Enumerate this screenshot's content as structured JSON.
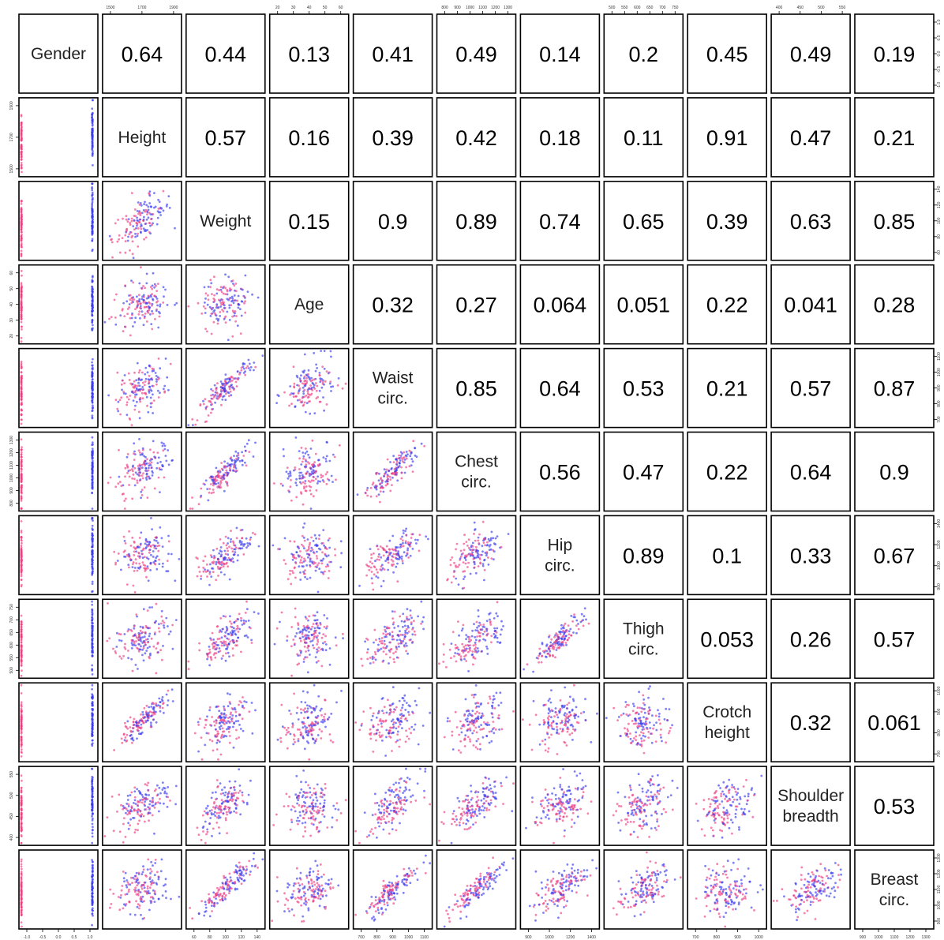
{
  "chart_data": {
    "type": "scatter",
    "subtype": "scatterplot-matrix",
    "variables": [
      "Gender",
      "Height",
      "Weight",
      "Age",
      "Waist\ncirc.",
      "Chest\ncirc.",
      "Hip\ncirc.",
      "Thigh\ncirc.",
      "Crotch\nheight",
      "Shoulder\nbreadth",
      "Breast\ncirc."
    ],
    "upper_panel": "correlation",
    "lower_panel": "scatter",
    "correlations": [
      [
        "",
        "0.64",
        "0.44",
        "0.13",
        "0.41",
        "0.49",
        "0.14",
        "0.2",
        "0.45",
        "0.49",
        "0.19"
      ],
      [
        "",
        "",
        "0.57",
        "0.16",
        "0.39",
        "0.42",
        "0.18",
        "0.11",
        "0.91",
        "0.47",
        "0.21"
      ],
      [
        "",
        "",
        "",
        "0.15",
        "0.9",
        "0.89",
        "0.74",
        "0.65",
        "0.39",
        "0.63",
        "0.85"
      ],
      [
        "",
        "",
        "",
        "",
        "0.32",
        "0.27",
        "0.064",
        "0.051",
        "0.22",
        "0.041",
        "0.28"
      ],
      [
        "",
        "",
        "",
        "",
        "",
        "0.85",
        "0.64",
        "0.53",
        "0.21",
        "0.57",
        "0.87"
      ],
      [
        "",
        "",
        "",
        "",
        "",
        "",
        "0.56",
        "0.47",
        "0.22",
        "0.64",
        "0.9"
      ],
      [
        "",
        "",
        "",
        "",
        "",
        "",
        "",
        "0.89",
        "0.1",
        "0.33",
        "0.67"
      ],
      [
        "",
        "",
        "",
        "",
        "",
        "",
        "",
        "",
        "0.053",
        "0.26",
        "0.57"
      ],
      [
        "",
        "",
        "",
        "",
        "",
        "",
        "",
        "",
        "",
        "0.32",
        "0.061"
      ],
      [
        "",
        "",
        "",
        "",
        "",
        "",
        "",
        "",
        "",
        "",
        "0.53"
      ],
      [
        "",
        "",
        "",
        "",
        "",
        "",
        "",
        "",
        "",
        "",
        ""
      ]
    ],
    "groups": [
      {
        "color": "#ee3d82"
      },
      {
        "color": "#3a3cf0"
      }
    ],
    "axis_ticks": {
      "Gender": [
        "-1.0",
        "-0.5",
        "0.0",
        "0.5",
        "1.0"
      ],
      "Height": [
        "1500",
        "1700",
        "1900"
      ],
      "Weight": [
        "60",
        "80",
        "100",
        "120",
        "140"
      ],
      "Age": [
        "20",
        "30",
        "40",
        "50",
        "60"
      ],
      "Waist circ.": [
        "700",
        "800",
        "900",
        "1000",
        "1100"
      ],
      "Chest circ.": [
        "800",
        "900",
        "1000",
        "1100",
        "1200",
        "1300"
      ],
      "Hip circ.": [
        "900",
        "1000",
        "1200",
        "1400"
      ],
      "Thigh circ.": [
        "500",
        "550",
        "600",
        "650",
        "700",
        "750"
      ],
      "Crotch height": [
        "700",
        "800",
        "900",
        "1000"
      ],
      "Shoulder breadth": [
        "400",
        "450",
        "500",
        "550"
      ],
      "Breast circ.": [
        "900",
        "1000",
        "1100",
        "1200",
        "1300"
      ]
    },
    "top_axis_panels": [
      1,
      3,
      5,
      7,
      9
    ],
    "bottom_axis_panels": [
      0,
      2,
      4,
      6,
      8,
      10
    ],
    "left_axis_panels": [
      1,
      3,
      5,
      7,
      9
    ],
    "right_axis_panels": [
      0,
      2,
      4,
      6,
      8,
      10
    ],
    "grid": false,
    "legend": "none"
  }
}
